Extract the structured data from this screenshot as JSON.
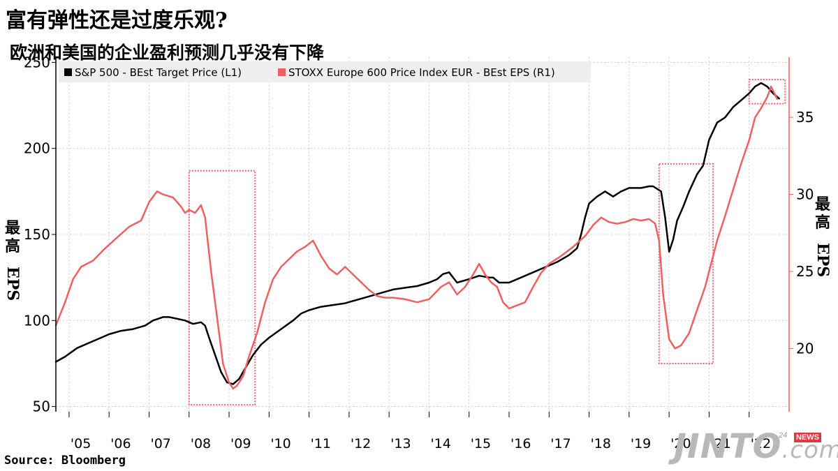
{
  "title": "富有弹性还是过度乐观?",
  "subtitle": "欧洲和美国的企业盈利预测几乎没有下降",
  "source": "Source:  Bloomberg",
  "watermark": {
    "brand": "JINTO",
    "domain": ".com",
    "badge_prefix": "24",
    "badge": "NEWS"
  },
  "colors": {
    "sp500": "#000000",
    "stoxx": "#f06060",
    "box": "#ee6070",
    "grid": "#cccccc",
    "right_axis": "#f06060"
  },
  "chart_data": {
    "type": "line",
    "title": "欧洲和美国的企业盈利预测几乎没有下降",
    "x_ticks": [
      "'05",
      "'06",
      "'07",
      "'08",
      "'09",
      "'10",
      "'11",
      "'12",
      "'13",
      "'14",
      "'15",
      "'16",
      "'17",
      "'18",
      "'19",
      "'20",
      "'21",
      "'22"
    ],
    "x_range": [
      2004.67,
      2023.0
    ],
    "y_left": {
      "label": "最高EPS",
      "ticks": [
        50,
        100,
        150,
        200,
        250
      ],
      "range": [
        47,
        253
      ]
    },
    "y_right": {
      "label": "最高EPS",
      "ticks": [
        20,
        25,
        30,
        35
      ],
      "range": [
        15.9,
        38.9
      ]
    },
    "legend": {
      "placement": "top-left"
    },
    "grid": true,
    "series": [
      {
        "name": "S&P 500 - BEst Target Price (L1)",
        "axis": "left",
        "color": "#000000",
        "x": [
          2004.67,
          2004.9,
          2005.2,
          2005.5,
          2005.8,
          2006.0,
          2006.3,
          2006.6,
          2006.9,
          2007.1,
          2007.35,
          2007.5,
          2007.7,
          2007.9,
          2008.1,
          2008.3,
          2008.4,
          2008.5,
          2008.65,
          2008.8,
          2008.95,
          2009.1,
          2009.25,
          2009.4,
          2009.6,
          2009.8,
          2010.0,
          2010.3,
          2010.6,
          2010.8,
          2011.0,
          2011.3,
          2011.6,
          2011.9,
          2012.2,
          2012.5,
          2012.8,
          2013.1,
          2013.4,
          2013.7,
          2014.0,
          2014.2,
          2014.35,
          2014.5,
          2014.7,
          2015.0,
          2015.25,
          2015.5,
          2015.6,
          2015.75,
          2016.0,
          2016.3,
          2016.6,
          2016.9,
          2017.2,
          2017.5,
          2017.7,
          2017.8,
          2017.9,
          2018.0,
          2018.2,
          2018.4,
          2018.6,
          2018.8,
          2019.0,
          2019.3,
          2019.5,
          2019.6,
          2019.8,
          2019.9,
          2020.0,
          2020.1,
          2020.2,
          2020.35,
          2020.5,
          2020.7,
          2020.85,
          2021.0,
          2021.2,
          2021.4,
          2021.6,
          2021.8,
          2022.0,
          2022.15,
          2022.3,
          2022.45,
          2022.6,
          2022.75
        ],
        "values": [
          76,
          79,
          84,
          87,
          90,
          92,
          94,
          95,
          97,
          100,
          102,
          102,
          101,
          100,
          98,
          99,
          97,
          90,
          80,
          70,
          64,
          63,
          66,
          72,
          80,
          86,
          90,
          95,
          100,
          104,
          106,
          108,
          109,
          110,
          112,
          114,
          116,
          118,
          119,
          120,
          122,
          124,
          127,
          128,
          122,
          124,
          126,
          125,
          125,
          122,
          122,
          125,
          128,
          131,
          134,
          138,
          142,
          150,
          160,
          168,
          172,
          175,
          172,
          175,
          177,
          177,
          178,
          178,
          175,
          160,
          140,
          147,
          158,
          166,
          175,
          185,
          190,
          205,
          215,
          218,
          224,
          228,
          232,
          236,
          238,
          236,
          232,
          229
        ]
      },
      {
        "name": "STOXX Europe 600 Price Index EUR - BEst EPS (R1)",
        "axis": "right",
        "color": "#f06060",
        "x": [
          2004.67,
          2004.9,
          2005.1,
          2005.3,
          2005.6,
          2005.9,
          2006.2,
          2006.5,
          2006.8,
          2007.0,
          2007.2,
          2007.35,
          2007.6,
          2007.8,
          2007.9,
          2008.0,
          2008.15,
          2008.3,
          2008.4,
          2008.55,
          2008.7,
          2008.85,
          2009.0,
          2009.1,
          2009.2,
          2009.35,
          2009.5,
          2009.7,
          2009.9,
          2010.1,
          2010.3,
          2010.5,
          2010.7,
          2010.9,
          2011.1,
          2011.3,
          2011.5,
          2011.7,
          2011.9,
          2012.1,
          2012.3,
          2012.5,
          2012.7,
          2012.9,
          2013.1,
          2013.4,
          2013.7,
          2014.0,
          2014.3,
          2014.5,
          2014.7,
          2014.9,
          2015.1,
          2015.25,
          2015.4,
          2015.55,
          2015.7,
          2015.85,
          2016.0,
          2016.2,
          2016.4,
          2016.6,
          2016.8,
          2017.0,
          2017.3,
          2017.6,
          2017.9,
          2018.1,
          2018.3,
          2018.5,
          2018.7,
          2018.9,
          2019.1,
          2019.3,
          2019.5,
          2019.65,
          2019.75,
          2019.85,
          2020.0,
          2020.15,
          2020.3,
          2020.5,
          2020.7,
          2020.9,
          2021.0,
          2021.2,
          2021.4,
          2021.6,
          2021.8,
          2022.0,
          2022.15,
          2022.3,
          2022.45,
          2022.55,
          2022.7
        ],
        "values": [
          21.5,
          23.0,
          24.5,
          25.3,
          25.7,
          26.5,
          27.2,
          27.9,
          28.3,
          29.5,
          30.2,
          30.0,
          29.8,
          29.2,
          28.8,
          29.0,
          28.8,
          29.3,
          28.5,
          25.0,
          22.0,
          19.0,
          17.8,
          17.4,
          17.6,
          18.2,
          19.5,
          21.0,
          23.0,
          24.5,
          25.3,
          25.8,
          26.3,
          26.6,
          27.0,
          26.0,
          25.2,
          24.8,
          25.3,
          24.8,
          24.3,
          23.8,
          23.4,
          23.3,
          23.3,
          23.2,
          23.0,
          23.2,
          24.0,
          24.3,
          23.5,
          24.0,
          24.8,
          25.5,
          24.8,
          24.3,
          24.0,
          23.0,
          22.6,
          22.8,
          23.0,
          24.0,
          24.9,
          25.5,
          26.0,
          26.6,
          27.3,
          28.0,
          28.5,
          28.2,
          28.1,
          28.2,
          28.4,
          28.3,
          28.4,
          28.1,
          27.0,
          23.5,
          20.6,
          20.0,
          20.2,
          21.0,
          22.5,
          24.0,
          25.0,
          27.0,
          28.6,
          30.3,
          32.0,
          33.5,
          35.0,
          35.6,
          36.3,
          37.0,
          36.2
        ]
      }
    ],
    "highlight_boxes": [
      {
        "x_range": [
          2008.0,
          2009.65
        ],
        "y_left_range": [
          51,
          187
        ]
      },
      {
        "x_range": [
          2019.75,
          2021.1
        ],
        "y_left_range": [
          75,
          191
        ]
      },
      {
        "x_range": [
          2022.0,
          2022.9
        ],
        "y_left_range": [
          226,
          240
        ]
      }
    ]
  }
}
